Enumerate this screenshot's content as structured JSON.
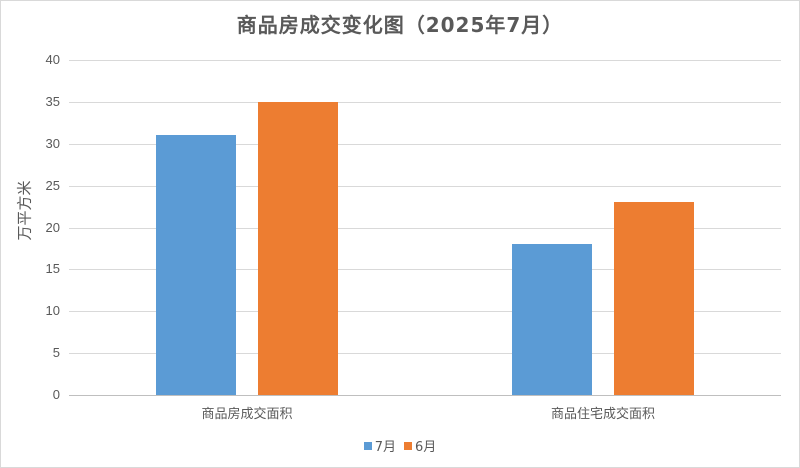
{
  "chart_data": {
    "type": "bar",
    "title": "商品房成交变化图（2025年7月）",
    "xlabel": "",
    "ylabel": "万平方米",
    "ylim": [
      0,
      40
    ],
    "yticks": [
      "0",
      "5",
      "10",
      "15",
      "20",
      "25",
      "30",
      "35",
      "40"
    ],
    "categories": [
      "商品房成交面积",
      "商品住宅成交面积"
    ],
    "series": [
      {
        "name": "7月",
        "color": "#5b9bd5",
        "values": [
          31,
          18
        ]
      },
      {
        "name": "6月",
        "color": "#ed7d31",
        "values": [
          35,
          23
        ]
      }
    ],
    "grid": true,
    "legend_position": "bottom"
  },
  "legend": [
    {
      "label": "7月",
      "color": "#5b9bd5"
    },
    {
      "label": "6月",
      "color": "#ed7d31"
    }
  ]
}
